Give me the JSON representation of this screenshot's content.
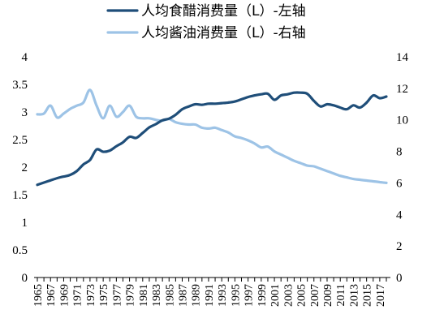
{
  "chart_data": {
    "type": "line",
    "title": "",
    "legend_position": "top",
    "x": [
      1965,
      1966,
      1967,
      1968,
      1969,
      1970,
      1971,
      1972,
      1973,
      1974,
      1975,
      1976,
      1977,
      1978,
      1979,
      1980,
      1981,
      1982,
      1983,
      1984,
      1985,
      1986,
      1987,
      1988,
      1989,
      1990,
      1991,
      1992,
      1993,
      1994,
      1995,
      1996,
      1997,
      1998,
      1999,
      2000,
      2001,
      2002,
      2003,
      2004,
      2005,
      2006,
      2007,
      2008,
      2009,
      2010,
      2011,
      2012,
      2013,
      2014,
      2015,
      2016,
      2017,
      2018
    ],
    "x_tick_labels": [
      "1965",
      "1967",
      "1969",
      "1971",
      "1973",
      "1975",
      "1977",
      "1979",
      "1981",
      "1983",
      "1985",
      "1987",
      "1989",
      "1991",
      "1993",
      "1995",
      "1997",
      "1999",
      "2001",
      "2003",
      "2005",
      "2007",
      "2009",
      "2011",
      "2013",
      "2015",
      "2017"
    ],
    "left_axis": {
      "ylim": [
        0,
        4
      ],
      "ticks": [
        "0",
        "0.5",
        "1",
        "1.5",
        "2",
        "2.5",
        "3",
        "3.5",
        "4"
      ]
    },
    "right_axis": {
      "ylim": [
        0,
        14
      ],
      "ticks": [
        "0",
        "2",
        "4",
        "6",
        "8",
        "10",
        "12",
        "14"
      ]
    },
    "series": [
      {
        "name": "人均食醋消费量（L）-左轴",
        "axis": "left",
        "color": "#1f4e79",
        "values": [
          1.68,
          1.72,
          1.76,
          1.8,
          1.83,
          1.86,
          1.93,
          2.05,
          2.13,
          2.32,
          2.28,
          2.3,
          2.38,
          2.45,
          2.55,
          2.53,
          2.62,
          2.72,
          2.78,
          2.85,
          2.88,
          2.95,
          3.05,
          3.1,
          3.14,
          3.13,
          3.15,
          3.15,
          3.16,
          3.17,
          3.19,
          3.23,
          3.27,
          3.3,
          3.32,
          3.33,
          3.22,
          3.3,
          3.32,
          3.35,
          3.35,
          3.33,
          3.2,
          3.1,
          3.14,
          3.12,
          3.08,
          3.05,
          3.12,
          3.08,
          3.17,
          3.3,
          3.25,
          3.28
        ]
      },
      {
        "name": "人均酱油消费量（L）-右轴",
        "axis": "right",
        "color": "#9dc3e6",
        "values": [
          10.35,
          10.4,
          10.9,
          10.15,
          10.4,
          10.7,
          10.9,
          11.1,
          11.9,
          10.9,
          10.1,
          10.9,
          10.2,
          10.5,
          10.9,
          10.2,
          10.1,
          10.1,
          10.0,
          9.95,
          10.05,
          9.85,
          9.75,
          9.7,
          9.7,
          9.5,
          9.45,
          9.5,
          9.35,
          9.2,
          8.95,
          8.85,
          8.7,
          8.5,
          8.25,
          8.3,
          8.0,
          7.8,
          7.6,
          7.4,
          7.25,
          7.1,
          7.05,
          6.9,
          6.75,
          6.6,
          6.45,
          6.35,
          6.25,
          6.2,
          6.15,
          6.1,
          6.05,
          6.0
        ]
      }
    ]
  }
}
